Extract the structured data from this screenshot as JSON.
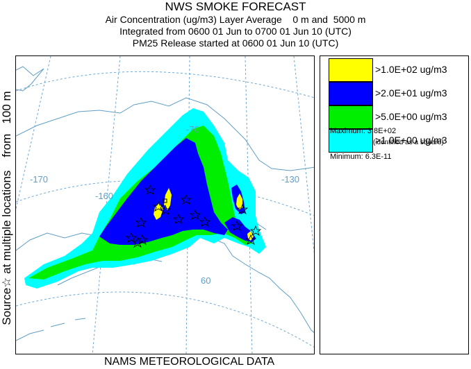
{
  "header": {
    "title": "NWS SMOKE FORECAST",
    "line1": "Air Concentration (ug/m3) Layer Average    0 m and  5000 m",
    "line2": "Integrated from 0600 01 Jun to 0700 01 Jun 10 (UTC)",
    "line3": "PM25 Release started at 0600 01 Jun 10 (UTC)"
  },
  "side_label": "Source☆ at multiple locations    from   100 m",
  "bottom_label": "NAMS METEOROLOGICAL DATA",
  "map": {
    "lon_labels": [
      "-170",
      "-160",
      "-130",
      "-70"
    ],
    "lat_labels": [
      "60"
    ],
    "colors": {
      "land": "#ffffff",
      "coast": "#5f9ec6",
      "grid": "#6ea8d2"
    }
  },
  "legend": {
    "items": [
      {
        "label": ">1.0E+02 ug/m3",
        "color": "#ffff00"
      },
      {
        "label": ">2.0E+01 ug/m3",
        "color": "#0000ff"
      },
      {
        "label": ">5.0E+00 ug/m3",
        "color": "#00ee00"
      },
      {
        "label": ">1.0E+00 ug/m3",
        "color": "#00ffff"
      }
    ],
    "maximum": "Maximum: 3.8E+02",
    "maximum_note": "(identified as a square)",
    "minimum": "Minimum: 6.3E-11"
  }
}
